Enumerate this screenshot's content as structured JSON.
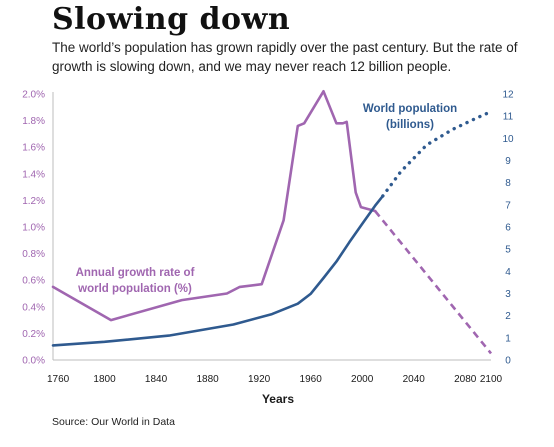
{
  "title": "Slowing down",
  "subtitle": "The world’s population has grown rapidly over the past century. But the rate of growth is slowing down, and we may never reach 12 billion people.",
  "source": "Source: Our World in Data",
  "colors": {
    "growth": "#a066b0",
    "population": "#2f5a8f",
    "axis": "#bdbdbd"
  },
  "chart_data": {
    "type": "line",
    "xlabel": "Years",
    "xlim": [
      1760,
      2100
    ],
    "x_ticks": [
      1760,
      1800,
      1840,
      1880,
      1920,
      1960,
      2000,
      2040,
      2080,
      2100
    ],
    "y_left": {
      "ticks": [
        "0.0%",
        "0.2%",
        "0.4%",
        "0.6%",
        "0.8%",
        "1.0%",
        "1.2%",
        "1.4%",
        "1.6%",
        "1.8%",
        "2.0%"
      ],
      "range": [
        0,
        2.0
      ]
    },
    "y_right": {
      "ticks": [
        "0",
        "1",
        "2",
        "3",
        "4",
        "5",
        "6",
        "7",
        "8",
        "9",
        "10",
        "11",
        "12"
      ],
      "range": [
        0,
        12
      ]
    },
    "series": [
      {
        "name": "Annual growth rate of world population (%)",
        "axis": "left",
        "historical": [
          [
            1760,
            0.55
          ],
          [
            1805,
            0.3
          ],
          [
            1860,
            0.45
          ],
          [
            1895,
            0.5
          ],
          [
            1905,
            0.55
          ],
          [
            1922,
            0.57
          ],
          [
            1939,
            1.05
          ],
          [
            1950,
            1.76
          ],
          [
            1955,
            1.78
          ],
          [
            1970,
            2.02
          ],
          [
            1980,
            1.78
          ],
          [
            1985,
            1.78
          ],
          [
            1988,
            1.79
          ],
          [
            1995,
            1.26
          ],
          [
            1999,
            1.15
          ],
          [
            2010,
            1.12
          ]
        ],
        "projected": [
          [
            2010,
            1.12
          ],
          [
            2100,
            0.05
          ]
        ]
      },
      {
        "name": "World population (billions)",
        "axis": "right",
        "historical": [
          [
            1760,
            0.66
          ],
          [
            1800,
            0.82
          ],
          [
            1850,
            1.1
          ],
          [
            1900,
            1.6
          ],
          [
            1930,
            2.07
          ],
          [
            1950,
            2.54
          ],
          [
            1960,
            2.98
          ],
          [
            1970,
            3.7
          ],
          [
            1980,
            4.44
          ],
          [
            1990,
            5.31
          ],
          [
            2000,
            6.14
          ],
          [
            2010,
            6.96
          ],
          [
            2016,
            7.4
          ]
        ],
        "projected": [
          [
            2016,
            7.4
          ],
          [
            2030,
            8.5
          ],
          [
            2050,
            9.7
          ],
          [
            2070,
            10.4
          ],
          [
            2090,
            10.95
          ],
          [
            2100,
            11.2
          ]
        ]
      }
    ],
    "annotations": {
      "growth": [
        "Annual growth rate of",
        "world population (%)"
      ],
      "population": [
        "World population",
        "(billions)"
      ]
    }
  }
}
